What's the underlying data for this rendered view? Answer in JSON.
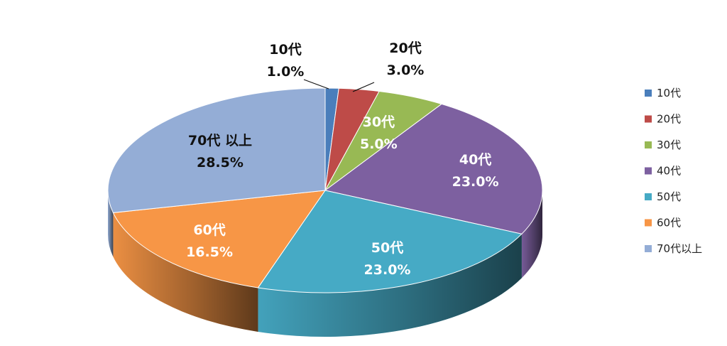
{
  "chart_data": {
    "type": "pie",
    "style": "3d",
    "legend_position": "right",
    "categories": [
      "10代",
      "20代",
      "30代",
      "40代",
      "50代",
      "60代",
      "70代以上"
    ],
    "values": [
      1.0,
      3.0,
      5.0,
      23.0,
      23.0,
      16.5,
      28.5
    ],
    "data_labels": [
      {
        "name": "10代",
        "value": "1.0%"
      },
      {
        "name": "20代",
        "value": "3.0%"
      },
      {
        "name": "30代",
        "value": "5.0%"
      },
      {
        "name": "40代",
        "value": "23.0%"
      },
      {
        "name": "50代",
        "value": "23.0%"
      },
      {
        "name": "60代",
        "value": "16.5%"
      },
      {
        "name": "70代 以上",
        "value": "28.5%"
      }
    ],
    "colors": [
      "#4A7EBB",
      "#BE4B48",
      "#98B954",
      "#7D60A0",
      "#46AAC5",
      "#F79646",
      "#94ADD6"
    ],
    "label_colors": [
      "#111111",
      "#111111",
      "#ffffff",
      "#ffffff",
      "#ffffff",
      "#ffffff",
      "#111111"
    ]
  }
}
